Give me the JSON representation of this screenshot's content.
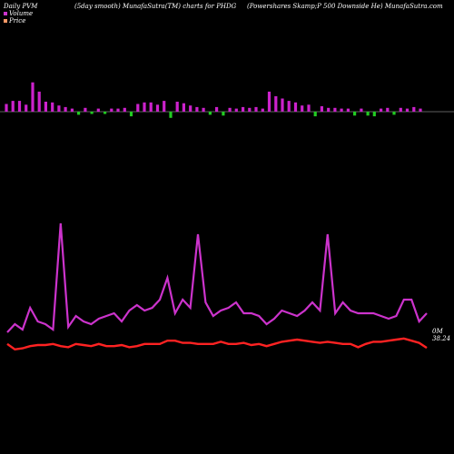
{
  "header": {
    "left": "Daily PVM",
    "middle": "(5day smooth) MunafaSutra(TM) charts for PHDG",
    "right": "(Powershares Skamp;P 500 Downside  He) MunafaSutra.com"
  },
  "legend": {
    "volume": "Volume",
    "price": "Price",
    "volume_color": "#cc33cc",
    "price_color": "#ff9966"
  },
  "end_labels": {
    "volume": "0M",
    "price": "38.24"
  },
  "colors": {
    "volume_up": "#cc22cc",
    "volume_down": "#22cc22",
    "volume_line": "#cc33cc",
    "price_line": "#ff2222",
    "axis": "#bbbbbb"
  },
  "chart_data": {
    "type": "line",
    "series": [
      {
        "name": "Volume",
        "values": [
          4,
          7,
          5,
          13,
          8,
          7,
          5,
          44,
          6,
          10,
          8,
          7,
          9,
          10,
          11,
          8,
          12,
          14,
          12,
          13,
          16,
          24,
          11,
          16,
          13,
          40,
          15,
          10,
          12,
          13,
          15,
          11,
          11,
          10,
          7,
          9,
          12,
          11,
          10,
          12,
          15,
          12,
          40,
          11,
          15,
          12,
          11,
          11,
          11,
          10,
          9,
          10,
          16,
          16,
          8,
          11
        ],
        "bars": [
          10,
          14,
          14,
          9,
          38,
          26,
          13,
          12,
          8,
          6,
          4,
          -4,
          5,
          -3,
          4,
          -3,
          4,
          4,
          5,
          -6,
          10,
          12,
          12,
          9,
          14,
          -8,
          13,
          11,
          8,
          6,
          5,
          -4,
          6,
          -5,
          5,
          4,
          6,
          5,
          6,
          4,
          26,
          20,
          17,
          14,
          12,
          8,
          9,
          -6,
          7,
          5,
          5,
          4,
          4,
          -5,
          4,
          -5,
          -6,
          4,
          5,
          -4,
          5,
          4,
          6,
          4
        ],
        "last_label": "0M"
      },
      {
        "name": "Price",
        "values": [
          38.6,
          38.1,
          38.2,
          38.4,
          38.5,
          38.5,
          38.6,
          38.4,
          38.3,
          38.6,
          38.5,
          38.4,
          38.6,
          38.4,
          38.4,
          38.5,
          38.3,
          38.4,
          38.6,
          38.6,
          38.6,
          38.9,
          38.9,
          38.7,
          38.7,
          38.6,
          38.6,
          38.6,
          38.8,
          38.6,
          38.6,
          38.7,
          38.5,
          38.6,
          38.4,
          38.6,
          38.8,
          38.9,
          39.0,
          38.9,
          38.8,
          38.7,
          38.8,
          38.7,
          38.6,
          38.6,
          38.3,
          38.6,
          38.8,
          38.8,
          38.9,
          39.0,
          39.1,
          38.9,
          38.7,
          38.24
        ],
        "last_label": "38.24"
      }
    ]
  }
}
